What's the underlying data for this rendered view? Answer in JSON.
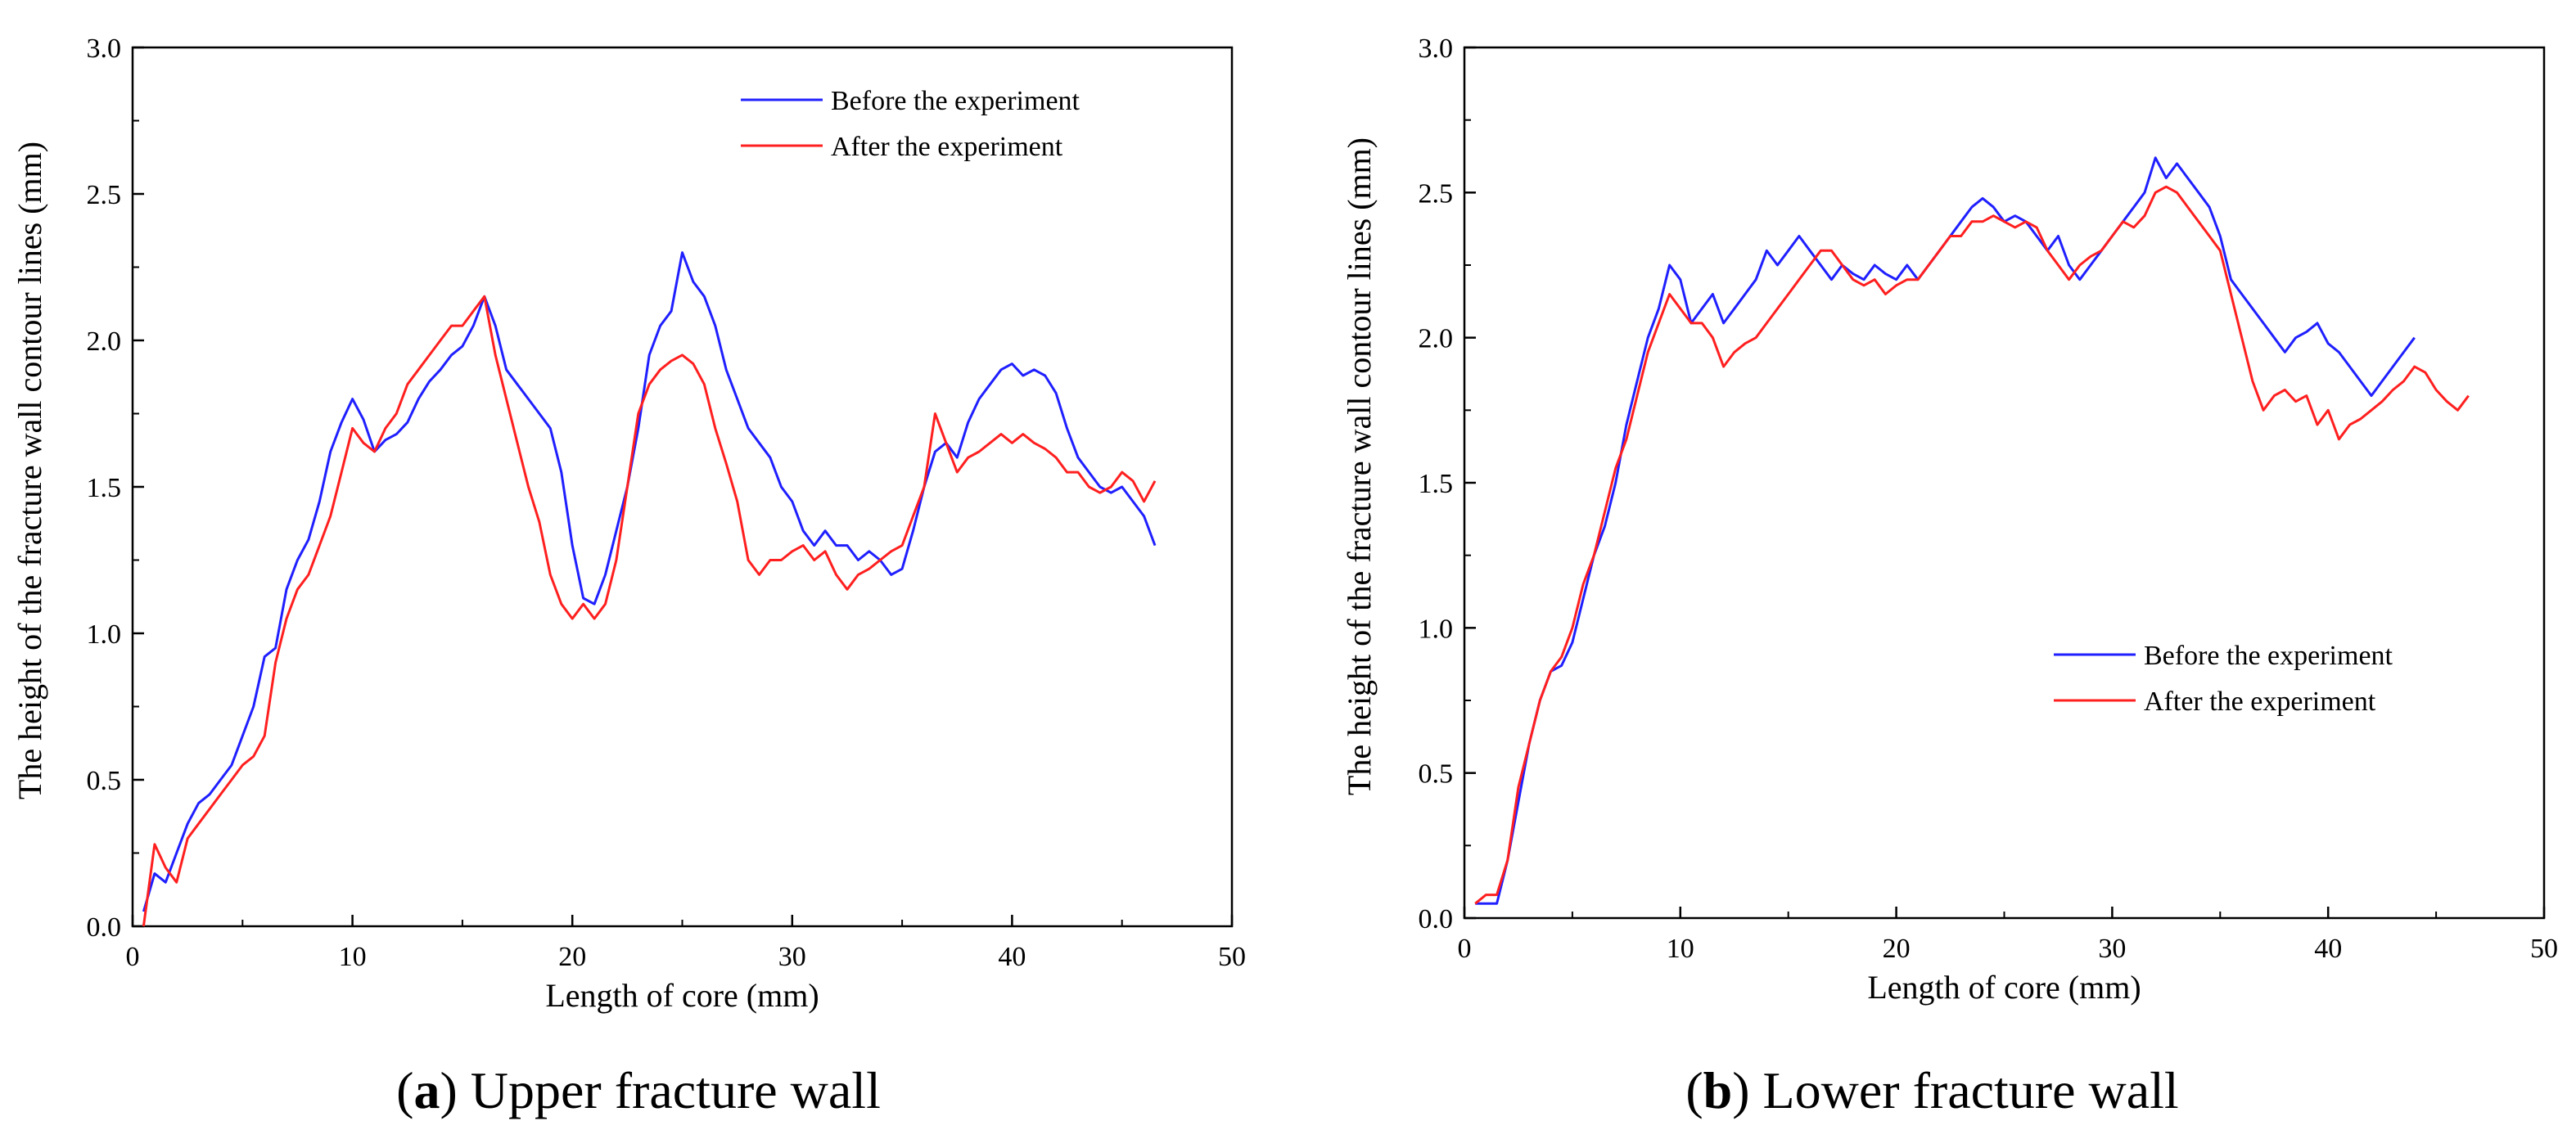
{
  "chart_data": [
    {
      "type": "line",
      "panel_letter": "a",
      "caption": "Upper fracture wall",
      "xlabel": "Length of core (mm)",
      "ylabel": "The height of the fracture wall contour lines (mm)",
      "xlim": [
        0,
        50
      ],
      "ylim": [
        0,
        3.0
      ],
      "x_ticks": [
        0,
        10,
        20,
        30,
        40,
        50
      ],
      "y_ticks": [
        "0.0",
        "0.5",
        "1.0",
        "1.5",
        "2.0",
        "2.5",
        "3.0"
      ],
      "legend_position": "top-right",
      "series": [
        {
          "name": "Before the experiment",
          "color": "#1f1fff",
          "x": [
            0.5,
            1.0,
            1.5,
            2.0,
            2.5,
            3.0,
            3.5,
            4.0,
            4.5,
            5.0,
            5.5,
            6.0,
            6.5,
            7.0,
            7.5,
            8.0,
            8.5,
            9.0,
            9.5,
            10.0,
            10.5,
            11.0,
            11.5,
            12.0,
            12.5,
            13.0,
            13.5,
            14.0,
            14.5,
            15.0,
            15.5,
            16.0,
            16.5,
            17.0,
            17.5,
            18.0,
            18.5,
            19.0,
            19.5,
            20.0,
            20.5,
            21.0,
            21.5,
            22.0,
            22.5,
            23.0,
            23.5,
            24.0,
            24.5,
            25.0,
            25.5,
            26.0,
            26.5,
            27.0,
            27.5,
            28.0,
            28.5,
            29.0,
            29.5,
            30.0,
            30.5,
            31.0,
            31.5,
            32.0,
            32.5,
            33.0,
            33.5,
            34.0,
            34.5,
            35.0,
            35.5,
            36.0,
            36.5,
            37.0,
            37.5,
            38.0,
            38.5,
            39.0,
            39.5,
            40.0,
            40.5,
            41.0,
            41.5,
            42.0,
            42.5,
            43.0,
            43.5,
            44.0,
            44.5,
            45.0,
            45.5,
            46.0,
            46.5
          ],
          "y": [
            0.05,
            0.18,
            0.15,
            0.25,
            0.35,
            0.42,
            0.45,
            0.5,
            0.55,
            0.65,
            0.75,
            0.92,
            0.95,
            1.15,
            1.25,
            1.32,
            1.45,
            1.62,
            1.72,
            1.8,
            1.73,
            1.62,
            1.66,
            1.68,
            1.72,
            1.8,
            1.86,
            1.9,
            1.95,
            1.98,
            2.05,
            2.15,
            2.05,
            1.9,
            1.85,
            1.8,
            1.75,
            1.7,
            1.55,
            1.3,
            1.12,
            1.1,
            1.2,
            1.35,
            1.5,
            1.7,
            1.95,
            2.05,
            2.1,
            2.3,
            2.2,
            2.15,
            2.05,
            1.9,
            1.8,
            1.7,
            1.65,
            1.6,
            1.5,
            1.45,
            1.35,
            1.3,
            1.35,
            1.3,
            1.3,
            1.25,
            1.28,
            1.25,
            1.2,
            1.22,
            1.35,
            1.5,
            1.62,
            1.65,
            1.6,
            1.72,
            1.8,
            1.85,
            1.9,
            1.92,
            1.88,
            1.9,
            1.88,
            1.82,
            1.7,
            1.6,
            1.55,
            1.5,
            1.48,
            1.5,
            1.45,
            1.4,
            1.3
          ]
        },
        {
          "name": "After the experiment",
          "color": "#ff1f1f",
          "x": [
            0.5,
            1.0,
            1.5,
            2.0,
            2.5,
            3.0,
            3.5,
            4.0,
            4.5,
            5.0,
            5.5,
            6.0,
            6.5,
            7.0,
            7.5,
            8.0,
            8.5,
            9.0,
            9.5,
            10.0,
            10.5,
            11.0,
            11.5,
            12.0,
            12.5,
            13.0,
            13.5,
            14.0,
            14.5,
            15.0,
            15.5,
            16.0,
            16.5,
            17.0,
            17.5,
            18.0,
            18.5,
            19.0,
            19.5,
            20.0,
            20.5,
            21.0,
            21.5,
            22.0,
            22.5,
            23.0,
            23.5,
            24.0,
            24.5,
            25.0,
            25.5,
            26.0,
            26.5,
            27.0,
            27.5,
            28.0,
            28.5,
            29.0,
            29.5,
            30.0,
            30.5,
            31.0,
            31.5,
            32.0,
            32.5,
            33.0,
            33.5,
            34.0,
            34.5,
            35.0,
            35.5,
            36.0,
            36.5,
            37.0,
            37.5,
            38.0,
            38.5,
            39.0,
            39.5,
            40.0,
            40.5,
            41.0,
            41.5,
            42.0,
            42.5,
            43.0,
            43.5,
            44.0,
            44.5,
            45.0,
            45.5,
            46.0,
            46.5
          ],
          "y": [
            0.0,
            0.28,
            0.2,
            0.15,
            0.3,
            0.35,
            0.4,
            0.45,
            0.5,
            0.55,
            0.58,
            0.65,
            0.9,
            1.05,
            1.15,
            1.2,
            1.3,
            1.4,
            1.55,
            1.7,
            1.65,
            1.62,
            1.7,
            1.75,
            1.85,
            1.9,
            1.95,
            2.0,
            2.05,
            2.05,
            2.1,
            2.15,
            1.95,
            1.8,
            1.65,
            1.5,
            1.38,
            1.2,
            1.1,
            1.05,
            1.1,
            1.05,
            1.1,
            1.25,
            1.5,
            1.75,
            1.85,
            1.9,
            1.93,
            1.95,
            1.92,
            1.85,
            1.7,
            1.58,
            1.45,
            1.25,
            1.2,
            1.25,
            1.25,
            1.28,
            1.3,
            1.25,
            1.28,
            1.2,
            1.15,
            1.2,
            1.22,
            1.25,
            1.28,
            1.3,
            1.4,
            1.5,
            1.75,
            1.65,
            1.55,
            1.6,
            1.62,
            1.65,
            1.68,
            1.65,
            1.68,
            1.65,
            1.63,
            1.6,
            1.55,
            1.55,
            1.5,
            1.48,
            1.5,
            1.55,
            1.52,
            1.45,
            1.52
          ]
        }
      ]
    },
    {
      "type": "line",
      "panel_letter": "b",
      "caption": "Lower fracture wall",
      "xlabel": "Length of core (mm)",
      "ylabel": "The height of the fracture wall contour lines (mm)",
      "xlim": [
        0,
        50
      ],
      "ylim": [
        0,
        3.0
      ],
      "x_ticks": [
        0,
        10,
        20,
        30,
        40,
        50
      ],
      "y_ticks": [
        "0.0",
        "0.5",
        "1.0",
        "1.5",
        "2.0",
        "2.5",
        "3.0"
      ],
      "legend_position": "center-right",
      "series": [
        {
          "name": "Before the experiment",
          "color": "#1f1fff",
          "x": [
            0.5,
            1.0,
            1.5,
            2.0,
            2.5,
            3.0,
            3.5,
            4.0,
            4.5,
            5.0,
            5.5,
            6.0,
            6.5,
            7.0,
            7.5,
            8.0,
            8.5,
            9.0,
            9.5,
            10.0,
            10.5,
            11.0,
            11.5,
            12.0,
            12.5,
            13.0,
            13.5,
            14.0,
            14.5,
            15.0,
            15.5,
            16.0,
            16.5,
            17.0,
            17.5,
            18.0,
            18.5,
            19.0,
            19.5,
            20.0,
            20.5,
            21.0,
            21.5,
            22.0,
            22.5,
            23.0,
            23.5,
            24.0,
            24.5,
            25.0,
            25.5,
            26.0,
            26.5,
            27.0,
            27.5,
            28.0,
            28.5,
            29.0,
            29.5,
            30.0,
            30.5,
            31.0,
            31.5,
            32.0,
            32.5,
            33.0,
            33.5,
            34.0,
            34.5,
            35.0,
            35.5,
            36.0,
            36.5,
            37.0,
            37.5,
            38.0,
            38.5,
            39.0,
            39.5,
            40.0,
            40.5,
            41.0,
            41.5,
            42.0,
            42.5,
            43.0,
            43.5,
            44.0
          ],
          "y": [
            0.05,
            0.05,
            0.05,
            0.2,
            0.4,
            0.6,
            0.75,
            0.85,
            0.87,
            0.95,
            1.1,
            1.25,
            1.35,
            1.5,
            1.7,
            1.85,
            2.0,
            2.1,
            2.25,
            2.2,
            2.05,
            2.1,
            2.15,
            2.05,
            2.1,
            2.15,
            2.2,
            2.3,
            2.25,
            2.3,
            2.35,
            2.3,
            2.25,
            2.2,
            2.25,
            2.22,
            2.2,
            2.25,
            2.22,
            2.2,
            2.25,
            2.2,
            2.25,
            2.3,
            2.35,
            2.4,
            2.45,
            2.48,
            2.45,
            2.4,
            2.42,
            2.4,
            2.35,
            2.3,
            2.35,
            2.25,
            2.2,
            2.25,
            2.3,
            2.35,
            2.4,
            2.45,
            2.5,
            2.62,
            2.55,
            2.6,
            2.55,
            2.5,
            2.45,
            2.35,
            2.2,
            2.15,
            2.1,
            2.05,
            2.0,
            1.95,
            2.0,
            2.02,
            2.05,
            1.98,
            1.95,
            1.9,
            1.85,
            1.8,
            1.85,
            1.9,
            1.95,
            2.0
          ]
        },
        {
          "name": "After the experiment",
          "color": "#ff1f1f",
          "x": [
            0.5,
            1.0,
            1.5,
            2.0,
            2.5,
            3.0,
            3.5,
            4.0,
            4.5,
            5.0,
            5.5,
            6.0,
            6.5,
            7.0,
            7.5,
            8.0,
            8.5,
            9.0,
            9.5,
            10.0,
            10.5,
            11.0,
            11.5,
            12.0,
            12.5,
            13.0,
            13.5,
            14.0,
            14.5,
            15.0,
            15.5,
            16.0,
            16.5,
            17.0,
            17.5,
            18.0,
            18.5,
            19.0,
            19.5,
            20.0,
            20.5,
            21.0,
            21.5,
            22.0,
            22.5,
            23.0,
            23.5,
            24.0,
            24.5,
            25.0,
            25.5,
            26.0,
            26.5,
            27.0,
            27.5,
            28.0,
            28.5,
            29.0,
            29.5,
            30.0,
            30.5,
            31.0,
            31.5,
            32.0,
            32.5,
            33.0,
            33.5,
            34.0,
            34.5,
            35.0,
            35.5,
            36.0,
            36.5,
            37.0,
            37.5,
            38.0,
            38.5,
            39.0,
            39.5,
            40.0,
            40.5,
            41.0,
            41.5,
            42.0,
            42.5,
            43.0,
            43.5,
            44.0,
            44.5,
            45.0,
            45.5,
            46.0,
            46.5
          ],
          "y": [
            0.05,
            0.08,
            0.08,
            0.2,
            0.45,
            0.6,
            0.75,
            0.85,
            0.9,
            1.0,
            1.15,
            1.25,
            1.4,
            1.55,
            1.65,
            1.8,
            1.95,
            2.05,
            2.15,
            2.1,
            2.05,
            2.05,
            2.0,
            1.9,
            1.95,
            1.98,
            2.0,
            2.05,
            2.1,
            2.15,
            2.2,
            2.25,
            2.3,
            2.3,
            2.25,
            2.2,
            2.18,
            2.2,
            2.15,
            2.18,
            2.2,
            2.2,
            2.25,
            2.3,
            2.35,
            2.35,
            2.4,
            2.4,
            2.42,
            2.4,
            2.38,
            2.4,
            2.38,
            2.3,
            2.25,
            2.2,
            2.25,
            2.28,
            2.3,
            2.35,
            2.4,
            2.38,
            2.42,
            2.5,
            2.52,
            2.5,
            2.45,
            2.4,
            2.35,
            2.3,
            2.15,
            2.0,
            1.85,
            1.75,
            1.8,
            1.82,
            1.78,
            1.8,
            1.7,
            1.75,
            1.65,
            1.7,
            1.72,
            1.75,
            1.78,
            1.82,
            1.85,
            1.9,
            1.88,
            1.82,
            1.78,
            1.75,
            1.8
          ]
        }
      ]
    }
  ]
}
